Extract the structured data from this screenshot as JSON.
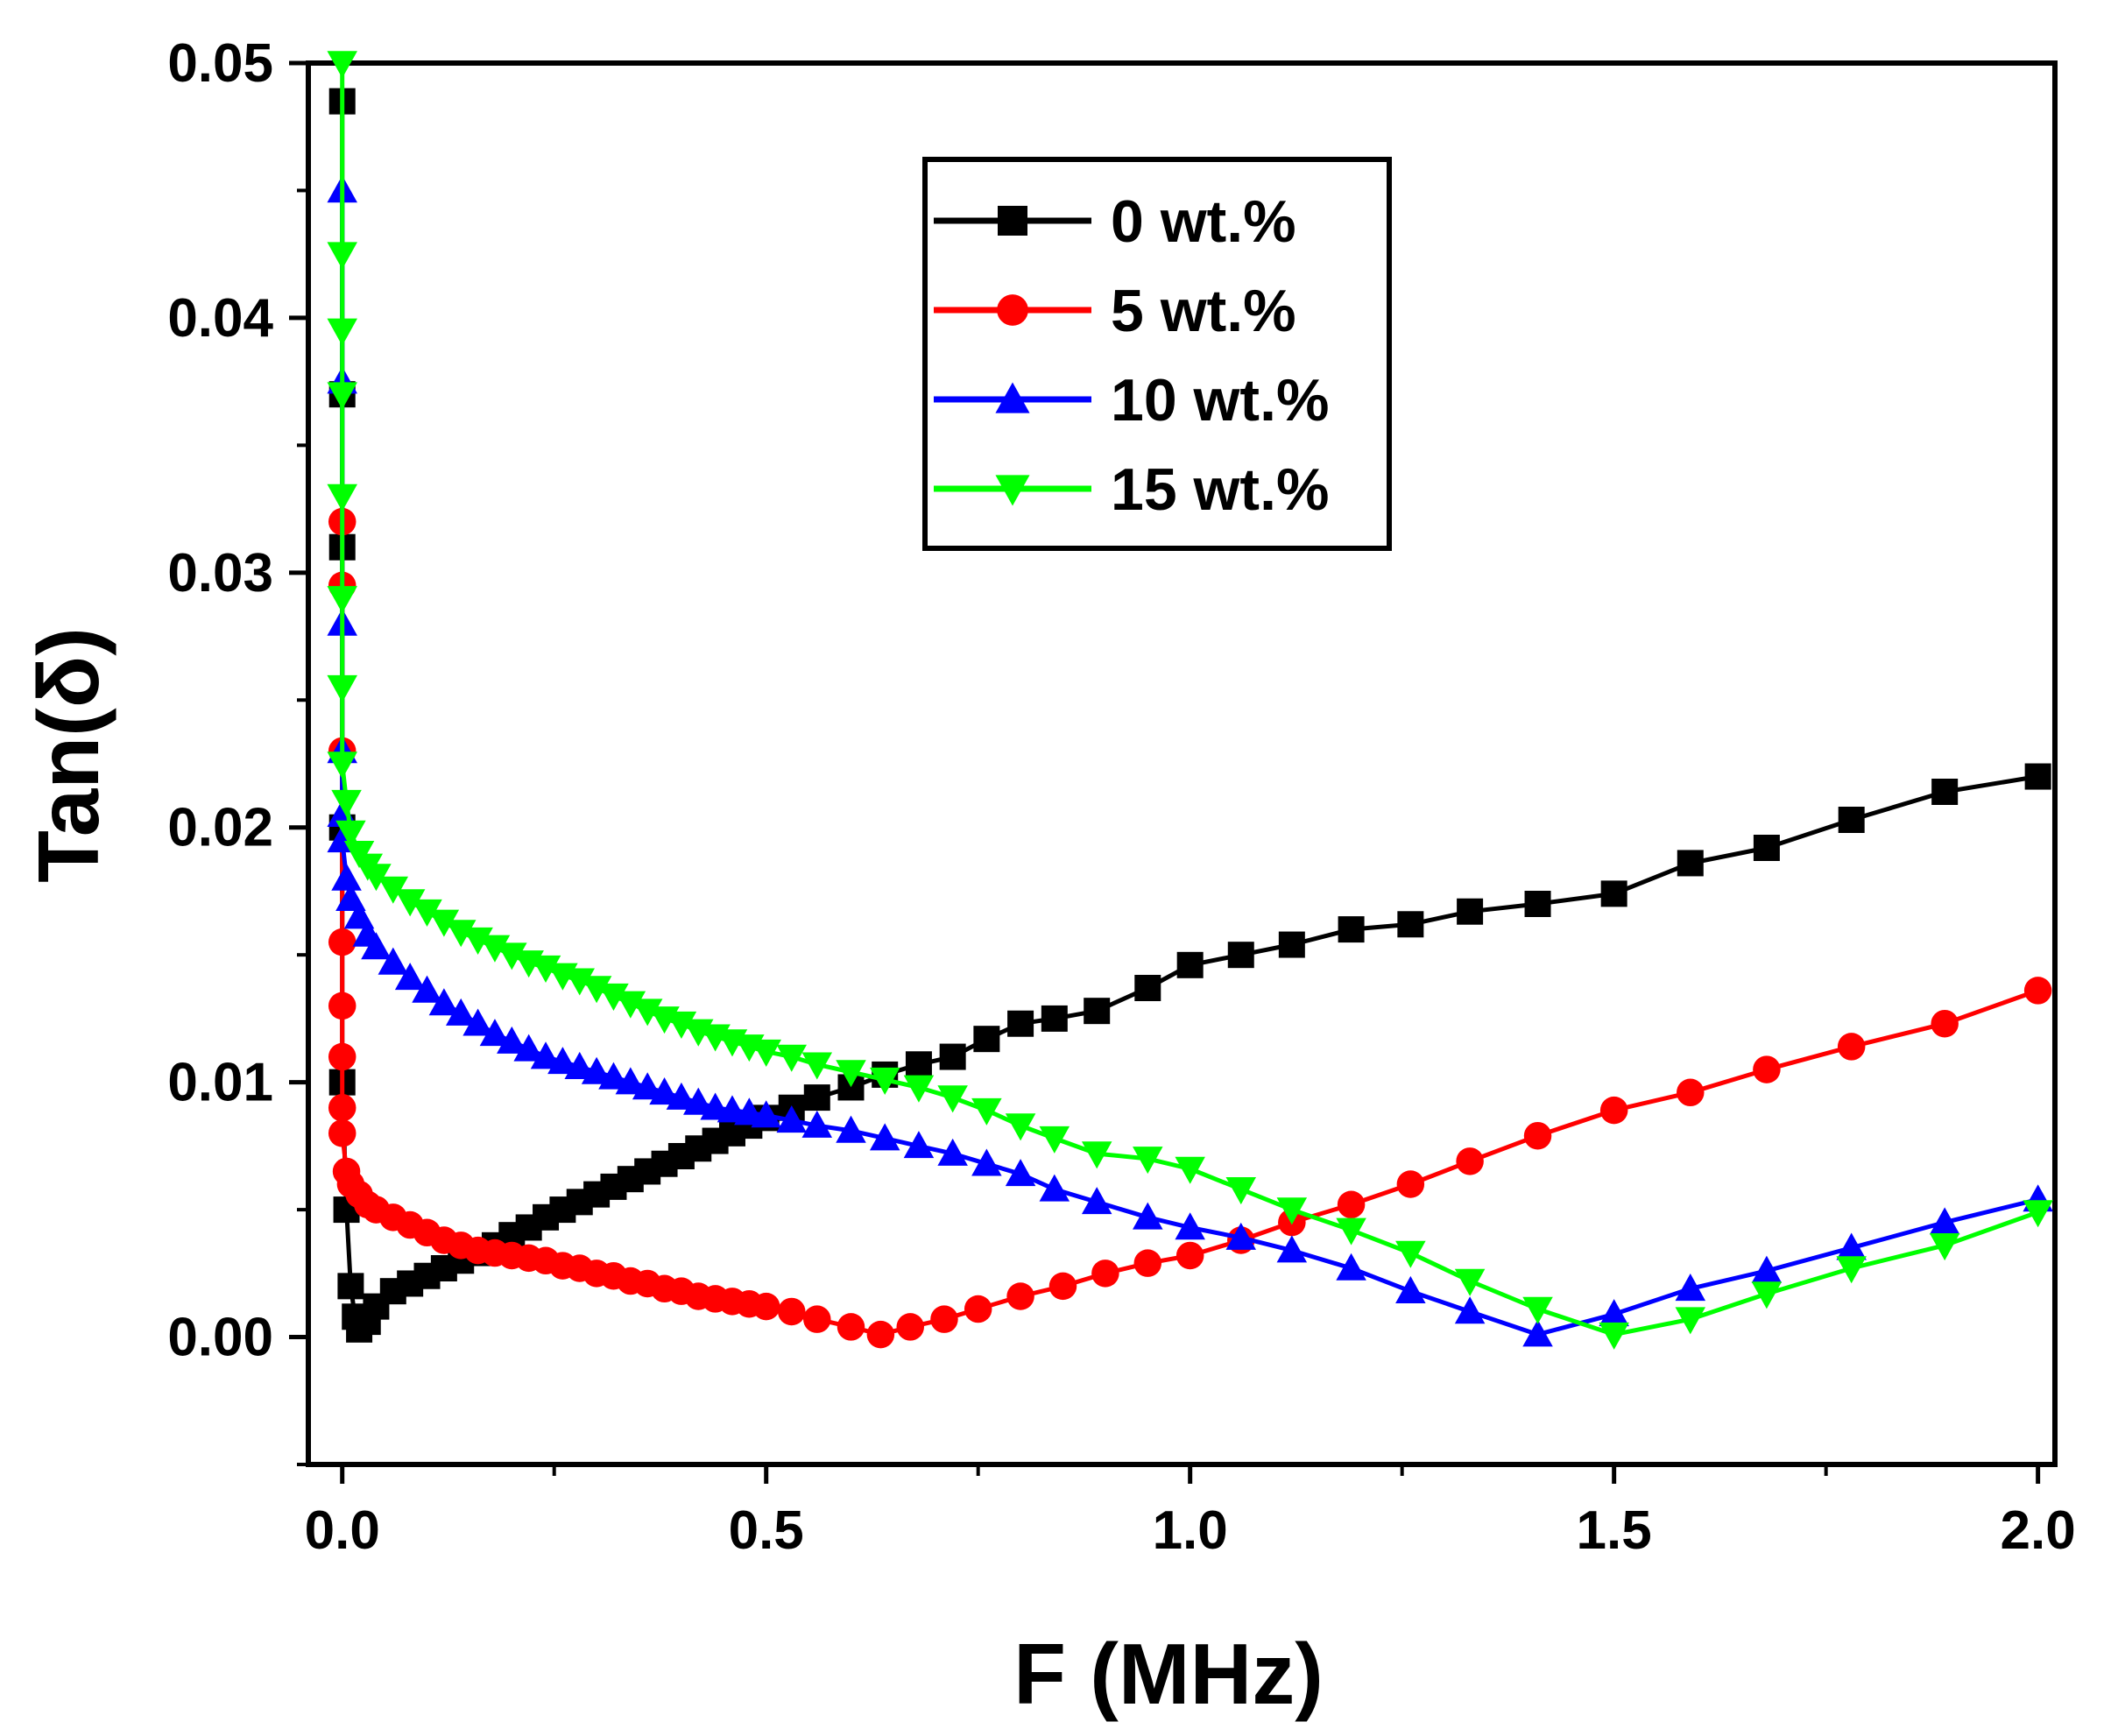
{
  "chart_data": {
    "type": "line",
    "title": "",
    "xlabel": "F (MHz)",
    "ylabel": "Tan(δ)",
    "xlim": [
      -0.04,
      2.02
    ],
    "ylim": [
      -0.005,
      0.05
    ],
    "xticks": [
      "0.0",
      "0.5",
      "1.0",
      "1.5",
      "2.0"
    ],
    "xtick_values": [
      0.0,
      0.5,
      1.0,
      1.5,
      2.0
    ],
    "yticks": [
      "0.00",
      "0.01",
      "0.02",
      "0.03",
      "0.04",
      "0.05"
    ],
    "ytick_values": [
      0.0,
      0.01,
      0.02,
      0.03,
      0.04,
      0.05
    ],
    "grid": false,
    "legend_position": "top-center",
    "series": [
      {
        "name": "0 wt.%",
        "color": "#000000",
        "marker": "square",
        "x": [
          0.0,
          0.0,
          0.0,
          0.0,
          0.0,
          0.005,
          0.01,
          0.015,
          0.02,
          0.03,
          0.04,
          0.06,
          0.08,
          0.1,
          0.12,
          0.14,
          0.16,
          0.18,
          0.2,
          0.22,
          0.24,
          0.26,
          0.28,
          0.3,
          0.32,
          0.34,
          0.36,
          0.38,
          0.4,
          0.42,
          0.44,
          0.46,
          0.48,
          0.5,
          0.53,
          0.56,
          0.6,
          0.64,
          0.68,
          0.72,
          0.76,
          0.8,
          0.84,
          0.89,
          0.95,
          1.0,
          1.06,
          1.12,
          1.19,
          1.26,
          1.33,
          1.41,
          1.5,
          1.59,
          1.68,
          1.78,
          1.89,
          2.0
        ],
        "y": [
          0.0485,
          0.037,
          0.031,
          0.02,
          0.01,
          0.005,
          0.002,
          0.0008,
          0.0003,
          0.0006,
          0.0012,
          0.0018,
          0.0021,
          0.0024,
          0.0027,
          0.003,
          0.0033,
          0.0036,
          0.004,
          0.0043,
          0.0047,
          0.005,
          0.0053,
          0.0056,
          0.0059,
          0.0062,
          0.0065,
          0.0068,
          0.0071,
          0.0074,
          0.0077,
          0.008,
          0.0083,
          0.0086,
          0.009,
          0.0094,
          0.0098,
          0.0103,
          0.0107,
          0.011,
          0.0117,
          0.0123,
          0.0125,
          0.0128,
          0.0137,
          0.0146,
          0.015,
          0.0154,
          0.016,
          0.0162,
          0.0167,
          0.017,
          0.0174,
          0.0186,
          0.0192,
          0.0203,
          0.0214,
          0.022
        ]
      },
      {
        "name": "5 wt.%",
        "color": "#ff0000",
        "marker": "circle",
        "x": [
          0.0,
          0.0,
          0.0,
          0.0,
          0.0,
          0.0,
          0.0,
          0.0,
          0.005,
          0.01,
          0.02,
          0.03,
          0.04,
          0.06,
          0.08,
          0.1,
          0.12,
          0.14,
          0.16,
          0.18,
          0.2,
          0.22,
          0.24,
          0.26,
          0.28,
          0.3,
          0.32,
          0.34,
          0.36,
          0.38,
          0.4,
          0.42,
          0.44,
          0.46,
          0.48,
          0.5,
          0.53,
          0.56,
          0.6,
          0.635,
          0.67,
          0.71,
          0.75,
          0.8,
          0.85,
          0.9,
          0.95,
          1.0,
          1.06,
          1.12,
          1.19,
          1.26,
          1.33,
          1.41,
          1.5,
          1.59,
          1.68,
          1.78,
          1.89,
          2.0
        ],
        "y": [
          0.032,
          0.0295,
          0.023,
          0.0155,
          0.013,
          0.011,
          0.009,
          0.008,
          0.0065,
          0.006,
          0.0056,
          0.0052,
          0.005,
          0.0047,
          0.0044,
          0.0041,
          0.0038,
          0.0036,
          0.0034,
          0.0033,
          0.0032,
          0.0031,
          0.003,
          0.0028,
          0.0027,
          0.0025,
          0.0024,
          0.0022,
          0.0021,
          0.0019,
          0.0018,
          0.0016,
          0.0015,
          0.0014,
          0.0013,
          0.0012,
          0.001,
          0.0007,
          0.0004,
          0.0001,
          0.0004,
          0.0007,
          0.0011,
          0.0016,
          0.002,
          0.0025,
          0.0029,
          0.0032,
          0.0038,
          0.0045,
          0.0052,
          0.006,
          0.0069,
          0.0079,
          0.0089,
          0.0096,
          0.0105,
          0.0114,
          0.0123,
          0.0136
        ]
      },
      {
        "name": "10 wt.%",
        "color": "#0000ff",
        "marker": "triangle-up",
        "x": [
          0.0,
          0.0,
          0.0,
          0.0,
          0.0,
          0.0,
          0.005,
          0.01,
          0.02,
          0.03,
          0.04,
          0.06,
          0.08,
          0.1,
          0.12,
          0.14,
          0.16,
          0.18,
          0.2,
          0.22,
          0.24,
          0.26,
          0.28,
          0.3,
          0.32,
          0.34,
          0.36,
          0.38,
          0.4,
          0.42,
          0.44,
          0.46,
          0.48,
          0.5,
          0.53,
          0.56,
          0.6,
          0.64,
          0.68,
          0.72,
          0.76,
          0.8,
          0.84,
          0.89,
          0.95,
          1.0,
          1.06,
          1.12,
          1.19,
          1.26,
          1.33,
          1.41,
          1.5,
          1.59,
          1.68,
          1.78,
          1.89,
          2.0
        ],
        "y": [
          0.045,
          0.0375,
          0.028,
          0.023,
          0.0205,
          0.0195,
          0.018,
          0.0172,
          0.0165,
          0.0158,
          0.0153,
          0.0147,
          0.0141,
          0.0136,
          0.0131,
          0.0127,
          0.0123,
          0.0119,
          0.0116,
          0.0113,
          0.011,
          0.0108,
          0.0106,
          0.0104,
          0.0102,
          0.01,
          0.0098,
          0.0096,
          0.0094,
          0.0092,
          0.009,
          0.0089,
          0.0088,
          0.0087,
          0.0085,
          0.0083,
          0.0081,
          0.0078,
          0.0075,
          0.0072,
          0.0068,
          0.0064,
          0.0058,
          0.0053,
          0.0047,
          0.0043,
          0.0039,
          0.0034,
          0.0027,
          0.0018,
          0.001,
          0.0001,
          0.0009,
          0.0019,
          0.0026,
          0.0035,
          0.0045,
          0.0054
        ]
      },
      {
        "name": "15 wt.%",
        "color": "#00ff00",
        "marker": "triangle-down",
        "x": [
          0.0,
          0.0,
          0.0,
          0.0,
          0.0,
          0.0,
          0.0,
          0.0,
          0.005,
          0.01,
          0.02,
          0.03,
          0.04,
          0.06,
          0.08,
          0.1,
          0.12,
          0.14,
          0.16,
          0.18,
          0.2,
          0.22,
          0.24,
          0.26,
          0.28,
          0.3,
          0.32,
          0.34,
          0.36,
          0.38,
          0.4,
          0.42,
          0.44,
          0.46,
          0.48,
          0.5,
          0.53,
          0.56,
          0.6,
          0.64,
          0.68,
          0.72,
          0.76,
          0.8,
          0.84,
          0.89,
          0.95,
          1.0,
          1.06,
          1.12,
          1.19,
          1.26,
          1.33,
          1.41,
          1.5,
          1.59,
          1.68,
          1.78,
          1.89,
          2.0
        ],
        "y": [
          0.05,
          0.0425,
          0.0395,
          0.037,
          0.033,
          0.029,
          0.0255,
          0.0225,
          0.021,
          0.0198,
          0.019,
          0.0185,
          0.0181,
          0.0176,
          0.0171,
          0.0167,
          0.0163,
          0.0159,
          0.0156,
          0.0153,
          0.015,
          0.0147,
          0.0145,
          0.0142,
          0.014,
          0.0137,
          0.0134,
          0.0131,
          0.0128,
          0.0125,
          0.0123,
          0.012,
          0.0118,
          0.0116,
          0.0114,
          0.0112,
          0.011,
          0.0107,
          0.0104,
          0.0101,
          0.0098,
          0.0094,
          0.0089,
          0.0083,
          0.0078,
          0.0072,
          0.007,
          0.0066,
          0.0058,
          0.005,
          0.0042,
          0.0033,
          0.0022,
          0.0011,
          0.0001,
          0.0007,
          0.0017,
          0.0027,
          0.0036,
          0.0049
        ]
      }
    ]
  }
}
